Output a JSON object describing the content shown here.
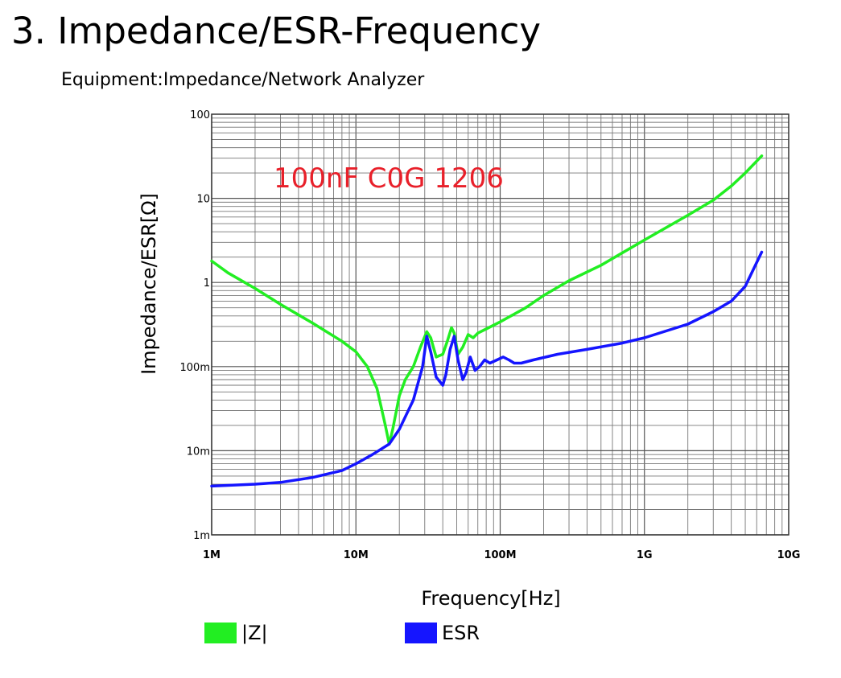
{
  "page": {
    "title": "3. Impedance/ESR-Frequency",
    "subtitle": "Equipment:Impedance/Network Analyzer"
  },
  "chart_data": {
    "type": "line",
    "title": "",
    "annotation": "100nF C0G 1206",
    "annotation_color": "#e8202a",
    "xlabel": "Frequency[Hz]",
    "ylabel": "Impedance/ESR[Ω]",
    "x_scale": "log",
    "y_scale": "log",
    "xlim": [
      1000000,
      10000000000
    ],
    "ylim": [
      0.001,
      100
    ],
    "x_ticks": [
      {
        "value": 1000000,
        "label": "1M"
      },
      {
        "value": 10000000,
        "label": "10M"
      },
      {
        "value": 100000000,
        "label": "100M"
      },
      {
        "value": 1000000000,
        "label": "1G"
      },
      {
        "value": 10000000000,
        "label": "10G"
      }
    ],
    "y_ticks": [
      {
        "value": 0.001,
        "label": "1m"
      },
      {
        "value": 0.01,
        "label": "10m"
      },
      {
        "value": 0.1,
        "label": "100m"
      },
      {
        "value": 1,
        "label": "1"
      },
      {
        "value": 10,
        "label": "10"
      },
      {
        "value": 100,
        "label": "100"
      }
    ],
    "grid": true,
    "legend_position": "bottom",
    "series": [
      {
        "name": "|Z|",
        "color": "#22ee22",
        "x": [
          1000000,
          1300000,
          2000000,
          3000000,
          5000000,
          8000000,
          10000000,
          12000000,
          14000000,
          16000000,
          17000000,
          18000000,
          20000000,
          22000000,
          25000000,
          28000000,
          31000000,
          33000000,
          36000000,
          40000000,
          43000000,
          46000000,
          48000000,
          51000000,
          55000000,
          60000000,
          65000000,
          70000000,
          80000000,
          100000000,
          150000000,
          200000000,
          300000000,
          500000000,
          1000000000,
          2000000000,
          3000000000,
          4000000000,
          5000000000,
          6500000000
        ],
        "y": [
          1.8,
          1.3,
          0.85,
          0.55,
          0.33,
          0.2,
          0.15,
          0.1,
          0.055,
          0.02,
          0.012,
          0.018,
          0.045,
          0.07,
          0.1,
          0.17,
          0.26,
          0.22,
          0.13,
          0.14,
          0.2,
          0.29,
          0.25,
          0.14,
          0.17,
          0.24,
          0.22,
          0.25,
          0.28,
          0.34,
          0.5,
          0.7,
          1.05,
          1.6,
          3.2,
          6.3,
          9.5,
          14,
          20,
          32
        ]
      },
      {
        "name": "ESR",
        "color": "#1515ff",
        "x": [
          1000000,
          2000000,
          3000000,
          5000000,
          8000000,
          10000000,
          13000000,
          17000000,
          20000000,
          25000000,
          29000000,
          31000000,
          33000000,
          36000000,
          40000000,
          42000000,
          45000000,
          48000000,
          51000000,
          55000000,
          58000000,
          62000000,
          67000000,
          72000000,
          78000000,
          85000000,
          95000000,
          105000000,
          115000000,
          125000000,
          140000000,
          170000000,
          250000000,
          400000000,
          700000000,
          1000000000,
          2000000000,
          3000000000,
          4000000000,
          5000000000,
          6500000000
        ],
        "y": [
          0.0038,
          0.004,
          0.0042,
          0.0048,
          0.0058,
          0.007,
          0.009,
          0.012,
          0.018,
          0.04,
          0.1,
          0.23,
          0.15,
          0.075,
          0.06,
          0.08,
          0.16,
          0.23,
          0.12,
          0.07,
          0.085,
          0.13,
          0.09,
          0.1,
          0.12,
          0.11,
          0.12,
          0.13,
          0.12,
          0.11,
          0.11,
          0.12,
          0.14,
          0.16,
          0.19,
          0.22,
          0.32,
          0.45,
          0.6,
          0.9,
          2.3
        ]
      }
    ]
  }
}
